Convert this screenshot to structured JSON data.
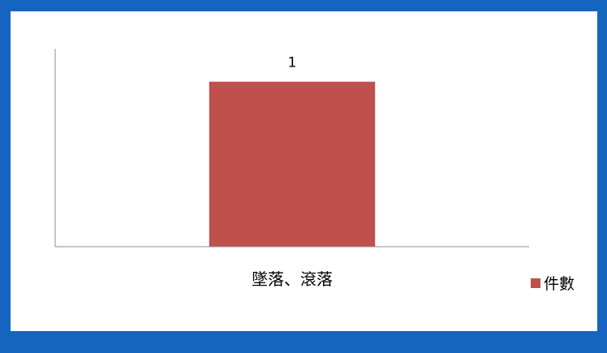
{
  "colors": {
    "frame_border": "#1565c0",
    "bar_fill": "#c0504d",
    "axis": "#8c8c8c"
  },
  "chart_data": {
    "type": "bar",
    "title": "",
    "xlabel": "",
    "ylabel": "",
    "categories": [
      "墜落、滾落"
    ],
    "series": [
      {
        "name": "件數",
        "values": [
          1
        ],
        "data_labels": [
          "1"
        ]
      }
    ],
    "ylim": [
      0,
      1.2
    ],
    "grid": false,
    "legend_position": "right"
  }
}
